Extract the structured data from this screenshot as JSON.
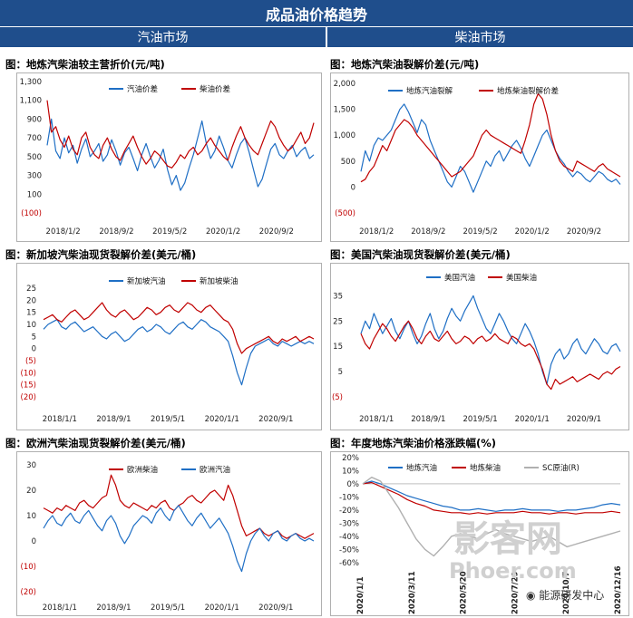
{
  "header": {
    "title": "成品油价格趋势",
    "left_section": "汽油市场",
    "right_section": "柴油市场"
  },
  "watermark": {
    "main": "影客网",
    "site": "Phoer.com",
    "source": "能源研发中心"
  },
  "panels": [
    {
      "title": "图：地炼汽柴油较主营折价(元/吨)",
      "chart_data": {
        "type": "line",
        "x_ticks": [
          "2018/1/2",
          "2018/9/2",
          "2019/5/2",
          "2020/1/2",
          "2020/9/2"
        ],
        "y_ticks": [
          "1,300",
          "1,100",
          "900",
          "700",
          "500",
          "300",
          "100",
          "(100)"
        ],
        "ylim": [
          -100,
          1300
        ],
        "series": [
          {
            "name": "汽油价差",
            "color": "#1f6fc5",
            "values": [
              620,
              900,
              560,
              480,
              700,
              540,
              620,
              430,
              580,
              690,
              500,
              560,
              640,
              450,
              520,
              680,
              560,
              410,
              540,
              600,
              480,
              350,
              520,
              640,
              500,
              380,
              460,
              580,
              360,
              200,
              300,
              140,
              220,
              380,
              520,
              700,
              880,
              640,
              480,
              560,
              720,
              600,
              460,
              380,
              520,
              640,
              700,
              540,
              360,
              180,
              260,
              420,
              580,
              640,
              520,
              480,
              560,
              620,
              500,
              560,
              600,
              480,
              520
            ]
          },
          {
            "name": "柴油价差",
            "color": "#c00000",
            "values": [
              1100,
              760,
              820,
              680,
              600,
              720,
              580,
              520,
              700,
              760,
              600,
              520,
              480,
              620,
              700,
              580,
              500,
              460,
              560,
              640,
              720,
              600,
              500,
              420,
              480,
              560,
              520,
              460,
              400,
              380,
              440,
              520,
              480,
              560,
              600,
              520,
              560,
              640,
              700,
              620,
              560,
              500,
              460,
              600,
              720,
              820,
              700,
              620,
              560,
              520,
              640,
              760,
              880,
              820,
              700,
              620,
              560,
              600,
              680,
              760,
              640,
              700,
              860
            ]
          }
        ]
      }
    },
    {
      "title": "图：地炼汽柴油裂解价差(元/吨)",
      "chart_data": {
        "type": "line",
        "x_ticks": [
          "2018/1/2",
          "2018/9/2",
          "2019/5/2",
          "2020/1/2",
          "2020/9/2"
        ],
        "y_ticks": [
          "2,000",
          "1,500",
          "1,000",
          "500",
          "0",
          "(500)"
        ],
        "ylim": [
          -500,
          2000
        ],
        "series": [
          {
            "name": "地炼汽油裂解",
            "color": "#1f6fc5",
            "values": [
              300,
              700,
              500,
              800,
              950,
              900,
              1000,
              1100,
              1300,
              1500,
              1600,
              1450,
              1250,
              1050,
              1300,
              1200,
              900,
              700,
              500,
              300,
              100,
              0,
              200,
              400,
              300,
              100,
              -100,
              100,
              300,
              500,
              400,
              600,
              700,
              500,
              650,
              800,
              900,
              750,
              550,
              400,
              600,
              800,
              1000,
              1100,
              900,
              700,
              550,
              450,
              300,
              200,
              300,
              250,
              150,
              100,
              200,
              300,
              250,
              150,
              100,
              150,
              50
            ]
          },
          {
            "name": "地炼柴油裂解价差",
            "color": "#c00000",
            "values": [
              100,
              150,
              300,
              400,
              600,
              800,
              700,
              900,
              1100,
              1200,
              1300,
              1250,
              1150,
              1000,
              900,
              800,
              700,
              600,
              500,
              400,
              300,
              200,
              250,
              300,
              400,
              500,
              600,
              800,
              1000,
              1100,
              1000,
              950,
              900,
              850,
              800,
              750,
              700,
              650,
              900,
              1200,
              1600,
              1800,
              1700,
              1400,
              1000,
              700,
              500,
              400,
              350,
              300,
              500,
              450,
              400,
              350,
              300,
              400,
              450,
              350,
              300,
              250,
              200
            ]
          }
        ]
      }
    },
    {
      "title": "图：新加坡汽柴油现货裂解价差(美元/桶)",
      "chart_data": {
        "type": "line",
        "x_ticks": [
          "2018/1/1",
          "2018/9/1",
          "2019/5/1",
          "2020/1/1",
          "2020/9/1"
        ],
        "y_ticks": [
          "25",
          "20",
          "15",
          "10",
          "5",
          "0",
          "(5)",
          "(10)",
          "(15)",
          "(20)"
        ],
        "ylim": [
          -20,
          25
        ],
        "series": [
          {
            "name": "新加坡汽油",
            "color": "#1f6fc5",
            "values": [
              8,
              10,
              11,
              12,
              9,
              8,
              10,
              11,
              9,
              7,
              8,
              9,
              7,
              5,
              4,
              6,
              7,
              5,
              3,
              4,
              6,
              8,
              9,
              7,
              8,
              10,
              9,
              7,
              6,
              8,
              10,
              11,
              9,
              8,
              10,
              12,
              11,
              9,
              8,
              7,
              5,
              3,
              -3,
              -10,
              -15,
              -8,
              -2,
              1,
              2,
              3,
              4,
              2,
              1,
              3,
              2,
              1,
              2,
              3,
              2,
              3,
              2
            ]
          },
          {
            "name": "新加坡柴油",
            "color": "#c00000",
            "values": [
              12,
              13,
              14,
              12,
              11,
              13,
              15,
              16,
              14,
              12,
              13,
              15,
              17,
              19,
              16,
              14,
              13,
              15,
              16,
              14,
              12,
              13,
              15,
              17,
              16,
              14,
              15,
              17,
              18,
              16,
              15,
              17,
              19,
              18,
              16,
              15,
              17,
              18,
              16,
              14,
              12,
              11,
              8,
              2,
              -2,
              0,
              1,
              2,
              3,
              4,
              5,
              3,
              2,
              4,
              3,
              4,
              5,
              3,
              4,
              5,
              4
            ]
          }
        ]
      }
    },
    {
      "title": "图：美国汽柴油现货裂解价差(美元/桶)",
      "chart_data": {
        "type": "line",
        "x_ticks": [
          "2018/1/1",
          "2018/9/1",
          "2019/5/1",
          "2020/1/1",
          "2020/9/1"
        ],
        "y_ticks": [
          "35",
          "25",
          "15",
          "5",
          "(5)"
        ],
        "ylim": [
          -5,
          38
        ],
        "series": [
          {
            "name": "美国汽油",
            "color": "#1f6fc5",
            "values": [
              20,
              25,
              22,
              28,
              24,
              20,
              23,
              26,
              21,
              18,
              22,
              25,
              20,
              16,
              19,
              24,
              28,
              22,
              18,
              21,
              26,
              30,
              27,
              25,
              29,
              32,
              35,
              30,
              26,
              22,
              20,
              24,
              28,
              25,
              21,
              18,
              16,
              20,
              24,
              21,
              17,
              12,
              5,
              0,
              8,
              12,
              14,
              10,
              12,
              16,
              18,
              14,
              12,
              15,
              18,
              16,
              13,
              12,
              15,
              16,
              13
            ]
          },
          {
            "name": "美国柴油",
            "color": "#c00000",
            "values": [
              20,
              16,
              14,
              18,
              21,
              24,
              22,
              19,
              17,
              20,
              23,
              25,
              22,
              18,
              16,
              19,
              21,
              18,
              17,
              19,
              21,
              18,
              16,
              17,
              19,
              18,
              16,
              18,
              19,
              17,
              18,
              20,
              18,
              17,
              16,
              19,
              18,
              16,
              15,
              16,
              14,
              10,
              6,
              0,
              -2,
              2,
              0,
              1,
              2,
              3,
              1,
              2,
              3,
              4,
              3,
              2,
              4,
              5,
              4,
              6,
              7
            ]
          }
        ]
      }
    },
    {
      "title": "图：欧洲汽柴油现货裂解价差(美元/桶)",
      "chart_data": {
        "type": "line",
        "x_ticks": [
          "2018/1/1",
          "2018/9/1",
          "2019/5/1",
          "2020/1/1",
          "2020/9/1"
        ],
        "y_ticks": [
          "30",
          "20",
          "10",
          "0",
          "(10)",
          "(20)"
        ],
        "ylim": [
          -20,
          30
        ],
        "series": [
          {
            "name": "欧洲柴油",
            "color": "#c00000",
            "values": [
              13,
              12,
              11,
              13,
              12,
              14,
              13,
              12,
              15,
              16,
              14,
              13,
              15,
              17,
              18,
              26,
              22,
              16,
              14,
              13,
              15,
              14,
              13,
              12,
              14,
              13,
              15,
              16,
              13,
              12,
              14,
              15,
              17,
              18,
              16,
              15,
              17,
              19,
              20,
              18,
              16,
              22,
              18,
              12,
              6,
              2,
              3,
              4,
              5,
              3,
              2,
              3,
              4,
              2,
              1,
              2,
              3,
              2,
              1,
              2,
              3
            ]
          },
          {
            "name": "欧洲汽油",
            "color": "#1f6fc5",
            "values": [
              5,
              8,
              10,
              7,
              6,
              9,
              11,
              8,
              7,
              10,
              12,
              9,
              6,
              4,
              8,
              10,
              7,
              2,
              -1,
              2,
              6,
              8,
              10,
              9,
              7,
              11,
              13,
              10,
              8,
              12,
              14,
              11,
              8,
              6,
              9,
              11,
              8,
              5,
              7,
              9,
              6,
              3,
              -2,
              -8,
              -12,
              -5,
              0,
              3,
              5,
              2,
              0,
              3,
              4,
              1,
              0,
              2,
              3,
              1,
              0,
              1,
              0
            ]
          }
        ]
      }
    },
    {
      "title": "图：年度地炼汽柴油价格涨跌幅(%)",
      "chart_data": {
        "type": "line",
        "x_ticks": [
          "2020/1/1",
          "2020/3/11",
          "2020/5/20",
          "2020/7/29",
          "2020/10/7",
          "2020/12/16"
        ],
        "y_ticks": [
          "20%",
          "10%",
          "0%",
          "-10%",
          "-20%",
          "-30%",
          "-40%",
          "-50%",
          "-60%"
        ],
        "ylim": [
          -65,
          20
        ],
        "series": [
          {
            "name": "地炼汽油",
            "color": "#1f6fc5",
            "values": [
              0,
              2,
              0,
              -3,
              -6,
              -9,
              -11,
              -13,
              -15,
              -17,
              -18,
              -20,
              -20,
              -19,
              -20,
              -21,
              -20,
              -20,
              -19,
              -20,
              -20,
              -20,
              -21,
              -20,
              -20,
              -19,
              -18,
              -16,
              -15,
              -16
            ]
          },
          {
            "name": "地炼柴油",
            "color": "#c00000",
            "values": [
              0,
              1,
              -2,
              -5,
              -8,
              -12,
              -15,
              -17,
              -20,
              -21,
              -22,
              -22,
              -23,
              -22,
              -23,
              -22,
              -22,
              -22,
              -21,
              -22,
              -22,
              -23,
              -22,
              -22,
              -23,
              -22,
              -22,
              -22,
              -21,
              -22
            ]
          },
          {
            "name": "SC原油(R)",
            "color": "#b0b0b0",
            "values": [
              0,
              5,
              2,
              -8,
              -18,
              -30,
              -42,
              -50,
              -55,
              -48,
              -40,
              -38,
              -40,
              -42,
              -38,
              -35,
              -38,
              -40,
              -42,
              -44,
              -42,
              -40,
              -44,
              -48,
              -46,
              -44,
              -42,
              -40,
              -38,
              -36
            ]
          }
        ]
      }
    }
  ]
}
